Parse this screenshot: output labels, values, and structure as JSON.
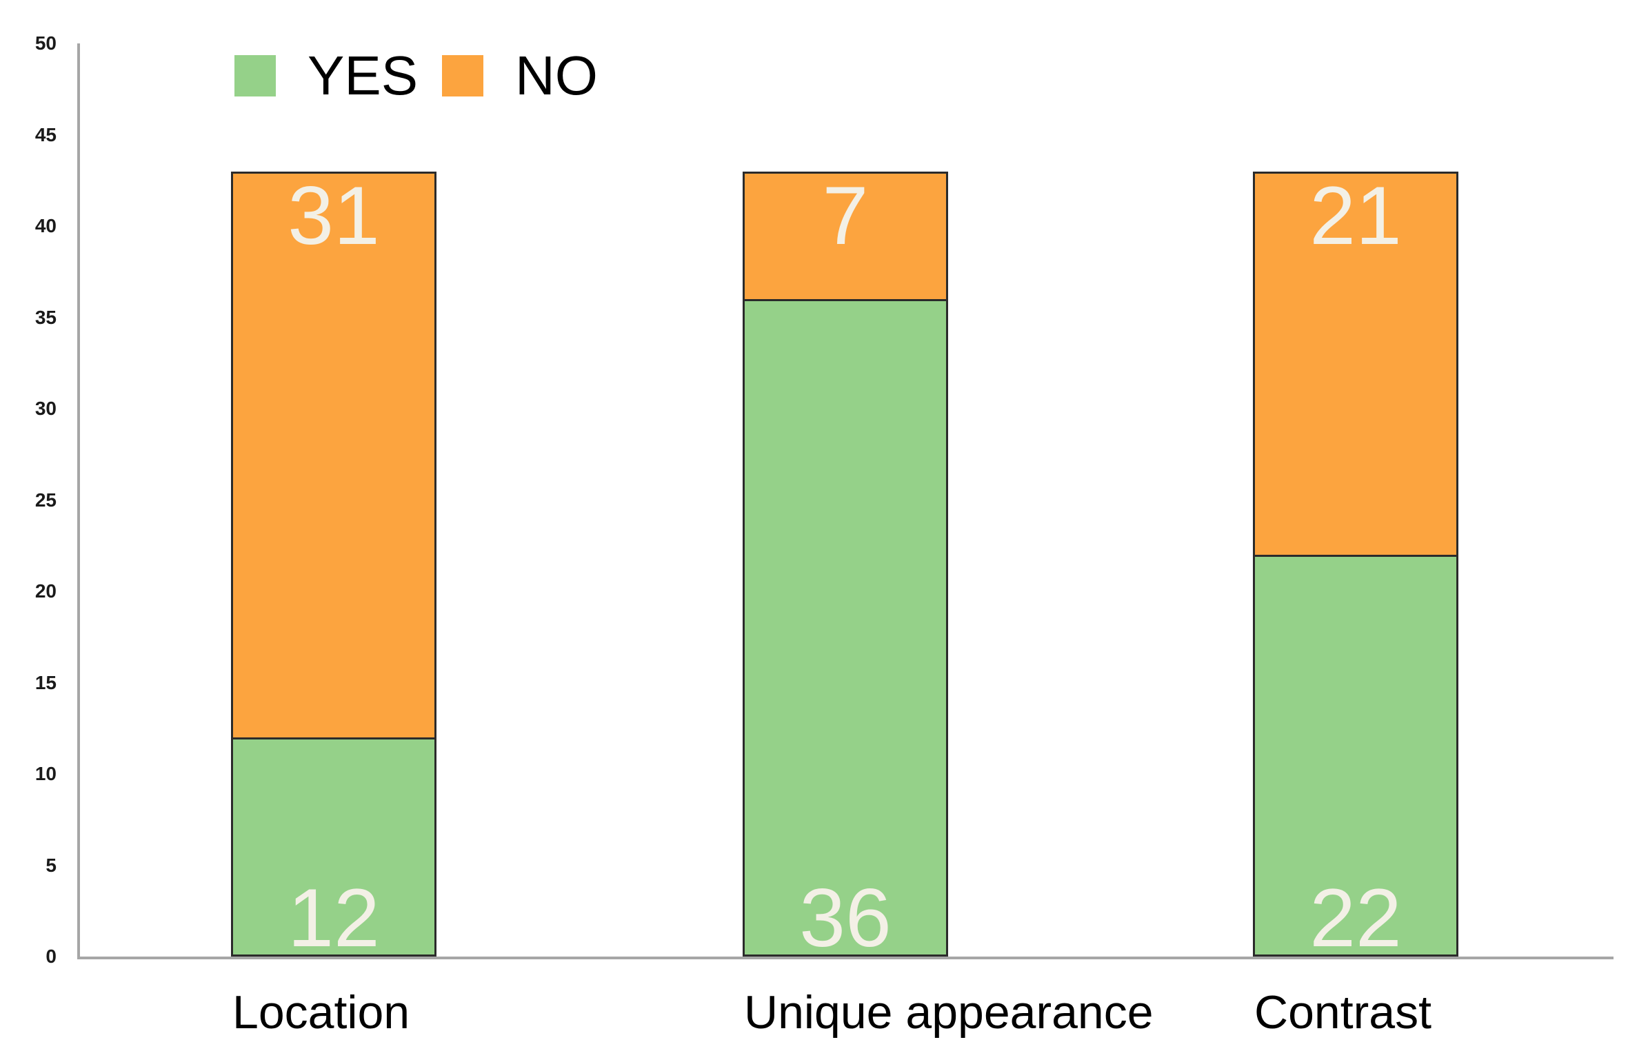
{
  "chart_data": {
    "type": "bar",
    "stacked": true,
    "title": "",
    "xlabel": "",
    "ylabel": "",
    "categories": [
      "Location",
      "Unique appearance",
      "Contrast"
    ],
    "series": [
      {
        "name": "YES",
        "color": "#95d189",
        "values": [
          12,
          36,
          22
        ]
      },
      {
        "name": "NO",
        "color": "#fca43f",
        "values": [
          31,
          7,
          21
        ]
      }
    ],
    "ylim": [
      0,
      50
    ],
    "yticks": [
      0,
      5,
      10,
      15,
      20,
      25,
      30,
      35,
      40,
      45,
      50
    ],
    "grid": false,
    "legend_position": "top-left",
    "value_labels_shown": true,
    "value_label_color": "#f3f0e6",
    "axis_color": "#a6a6a6",
    "bar_border_color": "#2b2b2b",
    "text_color": "#000000"
  }
}
